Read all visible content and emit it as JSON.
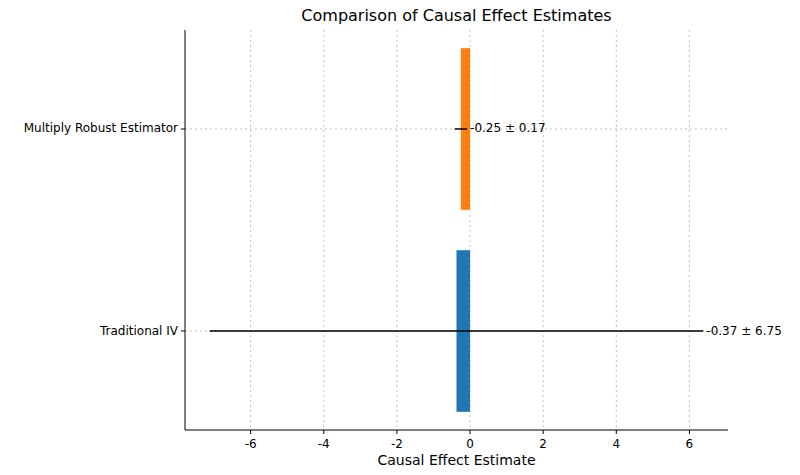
{
  "chart_data": {
    "type": "bar",
    "orientation": "horizontal",
    "title": "Comparison of Causal Effect Estimates",
    "x_label": "Causal Effect Estimate",
    "categories": [
      "Traditional IV",
      "Multiply Robust Estimator"
    ],
    "values": [
      -0.37,
      -0.25
    ],
    "errors": [
      6.75,
      0.17
    ],
    "value_labels": [
      "-0.37 ± 6.75",
      "-0.25 ± 0.17"
    ],
    "data_labels": true,
    "colors": [
      "#1f77b4",
      "#ff7f0e"
    ],
    "xlim": [
      -7.795,
      7.055
    ],
    "xticks": [
      -6,
      -4,
      -2,
      0,
      2,
      4,
      6
    ],
    "grid": true
  }
}
